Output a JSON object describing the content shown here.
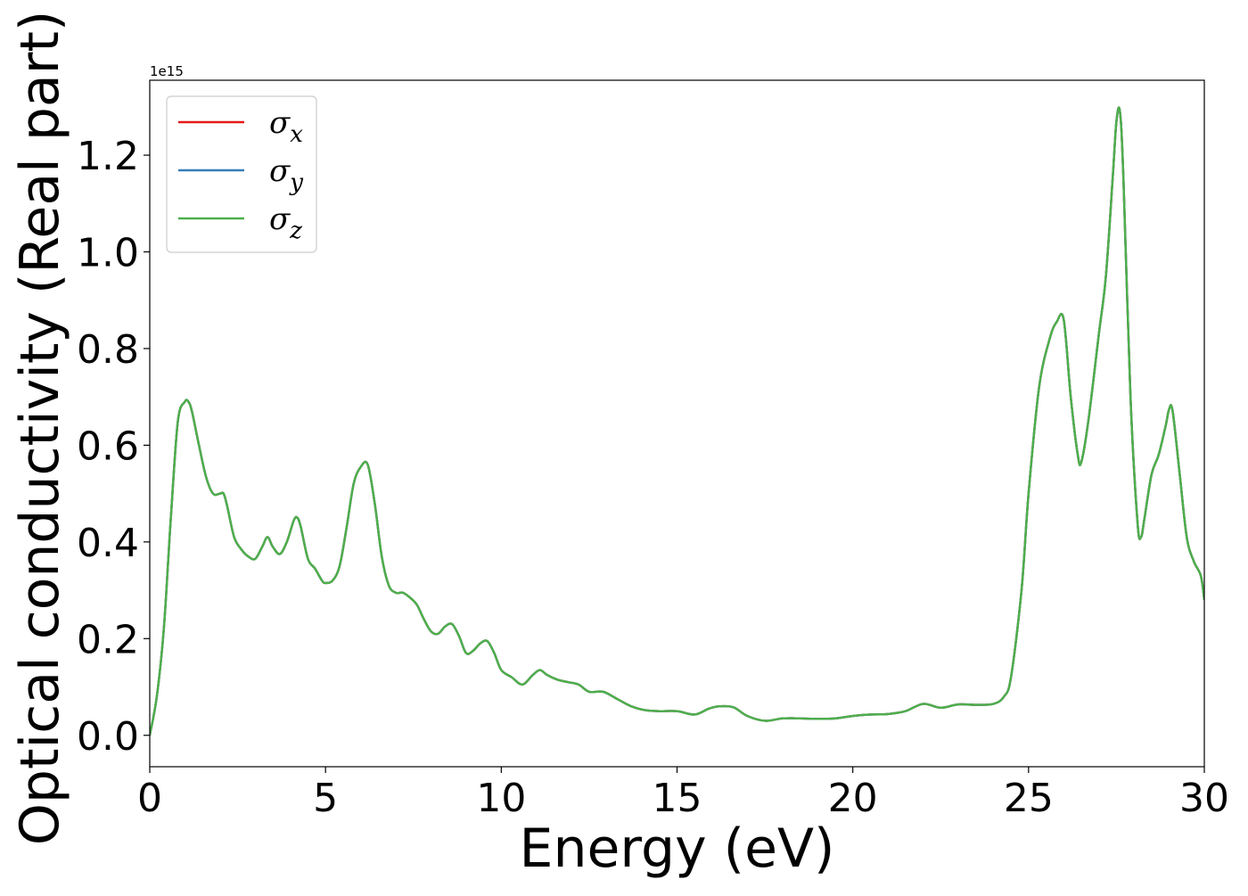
{
  "chart_data": {
    "type": "line",
    "xlabel": "Energy (eV)",
    "ylabel": "Optical conductivity (Real part)",
    "y_offset_label": "1e15",
    "xlim": [
      0,
      30
    ],
    "ylim": [
      -0.065,
      1.355
    ],
    "x_ticks": [
      0,
      5,
      10,
      15,
      20,
      25,
      30
    ],
    "x_tick_labels": [
      "0",
      "5",
      "10",
      "15",
      "20",
      "25",
      "30"
    ],
    "y_ticks": [
      0.0,
      0.2,
      0.4,
      0.6,
      0.8,
      1.0,
      1.2
    ],
    "y_tick_labels": [
      "0.0",
      "0.2",
      "0.4",
      "0.6",
      "0.8",
      "1.0",
      "1.2"
    ],
    "grid": false,
    "legend_position": "top-left",
    "series": [
      {
        "name": "σ",
        "subscript": "x",
        "color": "#e41a1c"
      },
      {
        "name": "σ",
        "subscript": "y",
        "color": "#377eb8"
      },
      {
        "name": "σ",
        "subscript": "z",
        "color": "#4daf4a"
      }
    ],
    "x": [
      0,
      0.2,
      0.4,
      0.6,
      0.8,
      1.0,
      1.1,
      1.2,
      1.4,
      1.6,
      1.8,
      2.0,
      2.1,
      2.2,
      2.4,
      2.6,
      2.8,
      3.0,
      3.2,
      3.35,
      3.5,
      3.7,
      3.9,
      4.1,
      4.2,
      4.3,
      4.5,
      4.7,
      4.9,
      5.0,
      5.2,
      5.4,
      5.6,
      5.8,
      6.0,
      6.2,
      6.4,
      6.6,
      6.8,
      7.0,
      7.2,
      7.4,
      7.6,
      7.8,
      8.0,
      8.2,
      8.4,
      8.6,
      8.8,
      9.0,
      9.2,
      9.4,
      9.6,
      9.8,
      10.0,
      10.3,
      10.6,
      10.9,
      11.1,
      11.3,
      11.6,
      11.9,
      12.2,
      12.5,
      12.9,
      13.3,
      13.7,
      14.1,
      14.5,
      15.0,
      15.5,
      15.9,
      16.2,
      16.6,
      17.0,
      17.5,
      18.0,
      18.5,
      19.0,
      19.5,
      20.0,
      20.5,
      21.0,
      21.5,
      22.0,
      22.5,
      23.0,
      23.5,
      24.0,
      24.3,
      24.5,
      24.8,
      25.0,
      25.3,
      25.6,
      25.8,
      26.0,
      26.2,
      26.4,
      26.5,
      26.7,
      27.0,
      27.2,
      27.4,
      27.5,
      27.6,
      27.7,
      27.9,
      28.1,
      28.2,
      28.3,
      28.5,
      28.7,
      28.9,
      29.0,
      29.1,
      29.3,
      29.5,
      29.7,
      29.9,
      30.0
    ],
    "y": [
      0.0,
      0.08,
      0.22,
      0.45,
      0.65,
      0.69,
      0.69,
      0.67,
      0.6,
      0.535,
      0.5,
      0.5,
      0.5,
      0.475,
      0.41,
      0.385,
      0.37,
      0.365,
      0.39,
      0.41,
      0.39,
      0.375,
      0.4,
      0.445,
      0.45,
      0.43,
      0.365,
      0.345,
      0.32,
      0.315,
      0.32,
      0.35,
      0.43,
      0.52,
      0.555,
      0.56,
      0.48,
      0.37,
      0.31,
      0.295,
      0.295,
      0.285,
      0.27,
      0.24,
      0.215,
      0.21,
      0.225,
      0.23,
      0.205,
      0.17,
      0.175,
      0.19,
      0.195,
      0.17,
      0.135,
      0.12,
      0.105,
      0.125,
      0.135,
      0.125,
      0.115,
      0.11,
      0.105,
      0.09,
      0.09,
      0.075,
      0.06,
      0.052,
      0.05,
      0.05,
      0.043,
      0.055,
      0.06,
      0.058,
      0.04,
      0.03,
      0.035,
      0.035,
      0.034,
      0.035,
      0.04,
      0.043,
      0.044,
      0.05,
      0.065,
      0.057,
      0.064,
      0.063,
      0.065,
      0.08,
      0.12,
      0.3,
      0.5,
      0.72,
      0.82,
      0.855,
      0.86,
      0.7,
      0.58,
      0.565,
      0.65,
      0.83,
      0.95,
      1.16,
      1.27,
      1.29,
      1.15,
      0.7,
      0.44,
      0.41,
      0.45,
      0.54,
      0.58,
      0.64,
      0.675,
      0.67,
      0.54,
      0.41,
      0.36,
      0.33,
      0.28
    ]
  }
}
